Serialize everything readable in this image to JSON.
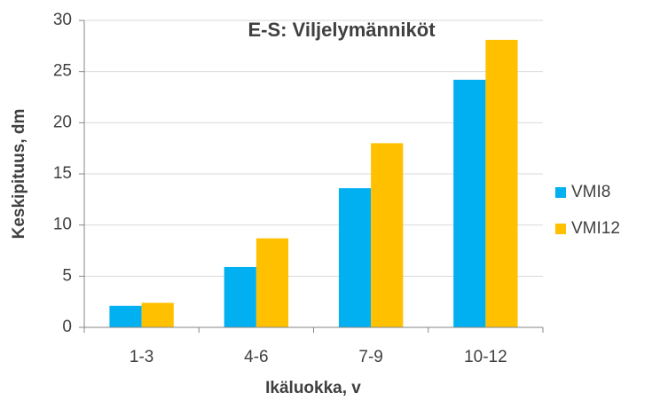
{
  "chart_data": {
    "type": "bar",
    "title": "E-S: Viljelymänniköt",
    "xlabel": "Ikäluokka, v",
    "ylabel": "Keskipituus, dm",
    "categories": [
      "1-3",
      "4-6",
      "7-9",
      "10-12"
    ],
    "series": [
      {
        "name": "VMI8",
        "color": "#00b0f0",
        "values": [
          2.1,
          5.9,
          13.6,
          24.2
        ]
      },
      {
        "name": "VMI12",
        "color": "#ffc000",
        "values": [
          2.4,
          8.7,
          18.0,
          28.1
        ]
      }
    ],
    "ylim": [
      0,
      30
    ],
    "yticks": [
      0,
      5,
      10,
      15,
      20,
      25,
      30
    ],
    "grid": true,
    "legend": "right"
  }
}
